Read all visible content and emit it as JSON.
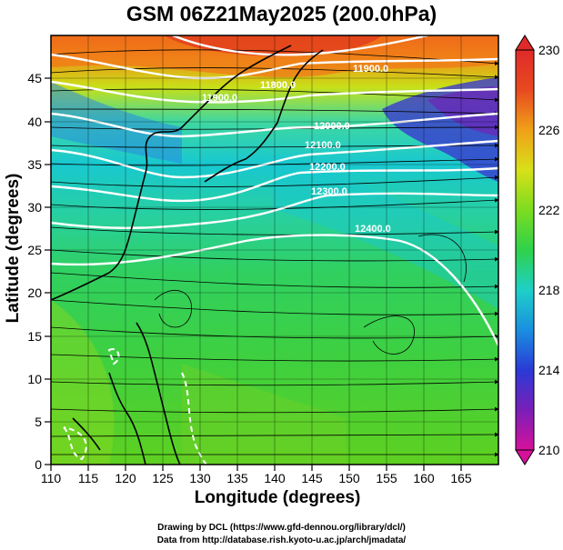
{
  "title": "GSM 06Z21May2025 (200.0hPa)",
  "axes": {
    "xlabel": "Longitude (degrees)",
    "ylabel": "Latitude  (degrees)",
    "x_ticks": [
      "110",
      "115",
      "120",
      "125",
      "130",
      "135",
      "140",
      "145",
      "150",
      "155",
      "160",
      "165"
    ],
    "y_ticks": [
      "0",
      "5",
      "10",
      "15",
      "20",
      "25",
      "30",
      "35",
      "40",
      "45"
    ],
    "xlim": [
      110,
      170
    ],
    "ylim": [
      0,
      50
    ]
  },
  "colorbar": {
    "labels": [
      "230",
      "226",
      "222",
      "218",
      "214",
      "210"
    ],
    "range": [
      210,
      230
    ],
    "colors": [
      "#d6119a",
      "#7a1fb8",
      "#2a3ad6",
      "#1a8fe0",
      "#1ed0c8",
      "#2ed24a",
      "#7cdc20",
      "#d8e018",
      "#f0a018",
      "#e84a20",
      "#e02a2a"
    ]
  },
  "contours": {
    "labels": [
      "11900.0",
      "11800.0",
      "11900.0",
      "12000.0",
      "12100.0",
      "12200.0",
      "12300.0",
      "12400.0"
    ]
  },
  "credits": {
    "line1": "Drawing by DCL (https://www.gfd-dennou.org/library/dcl/)",
    "line2": "Data from http://database.rish.kyoto-u.ac.jp/arch/jmadata/"
  }
}
